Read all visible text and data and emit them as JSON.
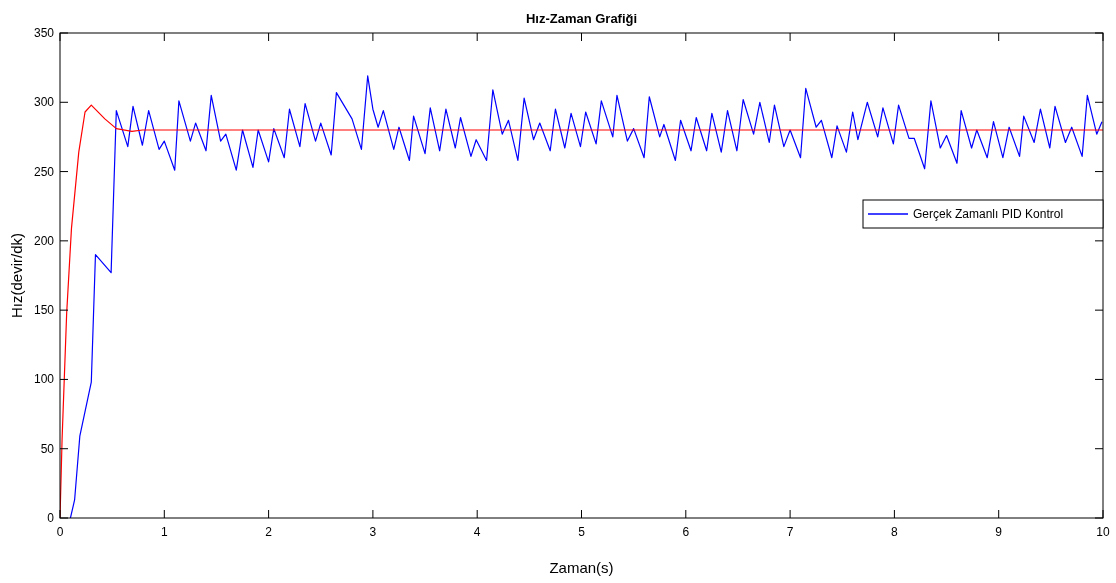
{
  "chart_data": {
    "type": "line",
    "title": "Hız-Zaman Grafiği",
    "xlabel": "Zaman(s)",
    "ylabel": "Hız(devir/dk)",
    "xlim": [
      0,
      10
    ],
    "ylim": [
      0,
      350
    ],
    "xticks": [
      0,
      1,
      2,
      3,
      4,
      5,
      6,
      7,
      8,
      9,
      10
    ],
    "yticks": [
      0,
      50,
      100,
      150,
      200,
      250,
      300,
      350
    ],
    "grid": false,
    "legend": "right",
    "line_style": "solid",
    "marker": "none",
    "series": [
      {
        "name": "Gerçek Zamanlı PID Kontrol",
        "color": "#0000ff",
        "x": [
          0.1,
          0.14,
          0.19,
          0.3,
          0.34,
          0.49,
          0.54,
          0.65,
          0.7,
          0.79,
          0.85,
          0.95,
          1.0,
          1.1,
          1.14,
          1.25,
          1.3,
          1.4,
          1.45,
          1.54,
          1.59,
          1.69,
          1.75,
          1.85,
          1.9,
          2.0,
          2.05,
          2.15,
          2.2,
          2.3,
          2.35,
          2.45,
          2.5,
          2.6,
          2.65,
          2.8,
          2.89,
          2.95,
          3.0,
          3.05,
          3.1,
          3.2,
          3.25,
          3.35,
          3.39,
          3.5,
          3.55,
          3.64,
          3.7,
          3.79,
          3.84,
          3.94,
          3.99,
          4.09,
          4.15,
          4.24,
          4.3,
          4.39,
          4.45,
          4.54,
          4.6,
          4.7,
          4.75,
          4.84,
          4.9,
          4.99,
          5.04,
          5.14,
          5.19,
          5.3,
          5.34,
          5.44,
          5.5,
          5.6,
          5.65,
          5.75,
          5.79,
          5.9,
          5.95,
          6.05,
          6.1,
          6.2,
          6.25,
          6.34,
          6.4,
          6.49,
          6.55,
          6.65,
          6.71,
          6.8,
          6.85,
          6.94,
          7.0,
          7.1,
          7.15,
          7.25,
          7.3,
          7.4,
          7.45,
          7.54,
          7.6,
          7.65,
          7.74,
          7.84,
          7.89,
          7.99,
          8.04,
          8.14,
          8.19,
          8.29,
          8.35,
          8.44,
          8.5,
          8.6,
          8.64,
          8.74,
          8.79,
          8.89,
          8.95,
          9.04,
          9.1,
          9.2,
          9.24,
          9.34,
          9.4,
          9.49,
          9.54,
          9.64,
          9.7,
          9.8,
          9.85,
          9.94,
          9.99
        ],
        "values": [
          0,
          13,
          59,
          98,
          190,
          177,
          294,
          268,
          297,
          269,
          294,
          266,
          272,
          251,
          301,
          272,
          285,
          265,
          305,
          272,
          277,
          251,
          280,
          253,
          280,
          257,
          281,
          260,
          295,
          268,
          299,
          272,
          285,
          262,
          307,
          288,
          266,
          319,
          295,
          282,
          294,
          266,
          282,
          258,
          290,
          263,
          296,
          265,
          295,
          267,
          289,
          261,
          273,
          258,
          309,
          277,
          287,
          258,
          303,
          273,
          285,
          265,
          295,
          267,
          292,
          268,
          293,
          270,
          301,
          275,
          305,
          272,
          281,
          260,
          304,
          275,
          284,
          258,
          287,
          265,
          289,
          265,
          292,
          264,
          294,
          265,
          302,
          277,
          300,
          271,
          298,
          268,
          280,
          260,
          310,
          282,
          287,
          260,
          283,
          264,
          293,
          273,
          300,
          275,
          296,
          270,
          298,
          274,
          274,
          252,
          301,
          267,
          276,
          256,
          294,
          267,
          280,
          260,
          286,
          260,
          282,
          261,
          290,
          271,
          295,
          267,
          297,
          271,
          282,
          261,
          305,
          277,
          286
        ]
      },
      {
        "color": "#ff0000",
        "x": [
          0,
          0.02,
          0.064,
          0.11,
          0.18,
          0.24,
          0.3,
          0.43,
          0.54,
          0.69,
          0.79,
          10
        ],
        "values": [
          0,
          57,
          148,
          209,
          264,
          293,
          298,
          288,
          281,
          279,
          280,
          280
        ]
      }
    ]
  }
}
